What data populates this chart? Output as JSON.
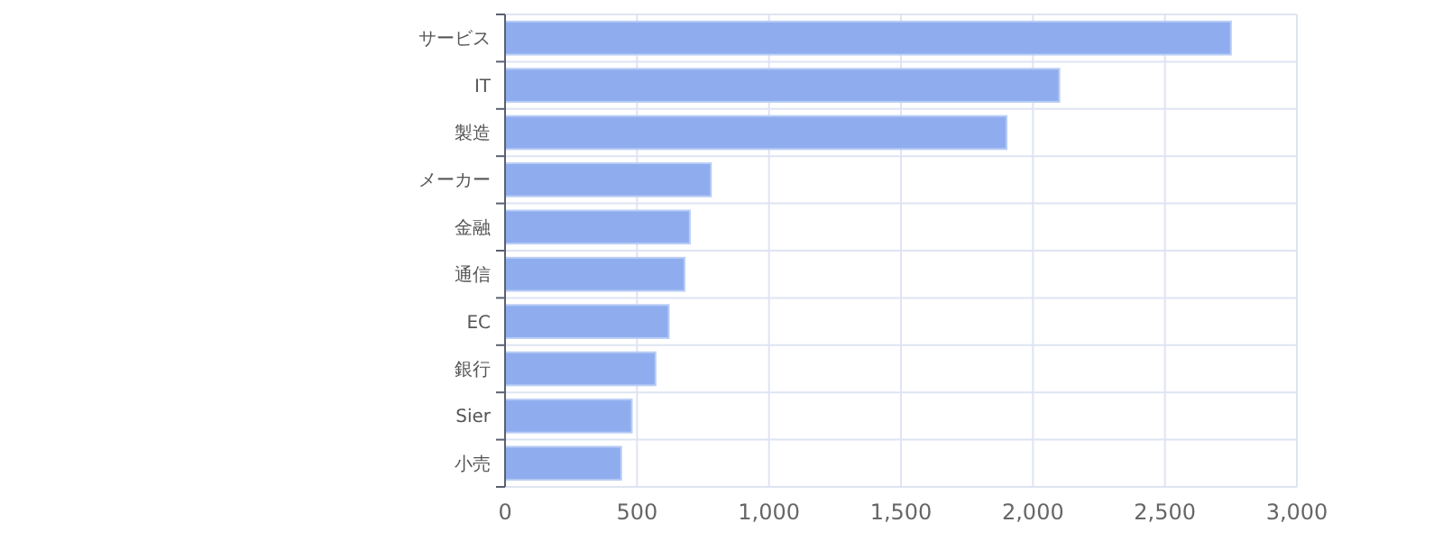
{
  "chart_data": {
    "type": "bar",
    "orientation": "horizontal",
    "categories": [
      "サービス",
      "IT",
      "製造",
      "メーカー",
      "金融",
      "通信",
      "EC",
      "銀行",
      "Sier",
      "小売"
    ],
    "values": [
      2750,
      2100,
      1900,
      780,
      700,
      680,
      620,
      570,
      480,
      440
    ],
    "color": "#8fadee",
    "xlim": [
      0,
      3000
    ],
    "xticks": [
      0,
      {
        "value": 500,
        "label": "500"
      },
      {
        "value": 1000,
        "label": "1,000"
      },
      {
        "value": 1500,
        "label": "1,500"
      },
      {
        "value": 2000,
        "label": "2,000"
      },
      {
        "value": 2500,
        "label": "2,500"
      },
      {
        "value": 3000,
        "label": "3,000"
      }
    ],
    "grid": true
  }
}
